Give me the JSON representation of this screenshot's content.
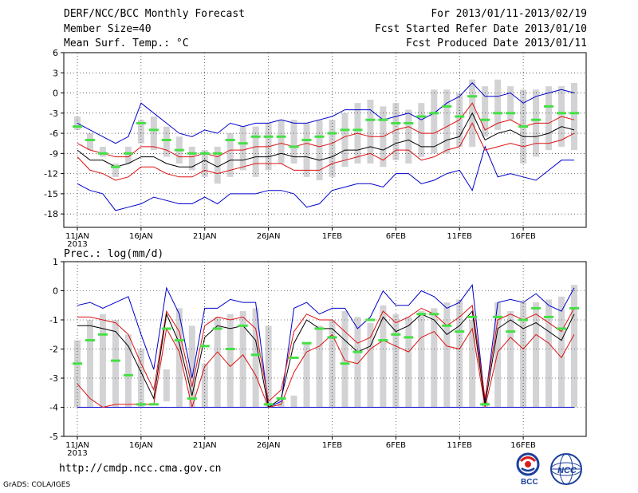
{
  "header": {
    "title": "DERF/NCC/BCC Monthly Forecast",
    "member_size": "Member Size=40",
    "variable": "Mean Surf. Temp.: °C",
    "period": "For 2013/01/11-2013/02/19",
    "start_date": "Fcst Started Refer Date 2013/01/10",
    "produced_date": "Fcst Produced Date 2013/01/11"
  },
  "footer": {
    "url": "http://cmdp.ncc.cma.gov.cn",
    "credit": "GrADS: COLA/IGES",
    "logo_bcc": "BCC",
    "logo_ncc": "NCC"
  },
  "colors": {
    "box": "#d3d3d6",
    "median": "#44e044",
    "mean": "#000000",
    "inner": "#dd1111",
    "outer": "#0000cc",
    "grid": "#000000"
  },
  "chart_data": [
    {
      "type": "line",
      "title": "Mean Surf. Temp.: °C",
      "ylim": [
        -20,
        6
      ],
      "yticks": [
        6,
        3,
        0,
        -3,
        -6,
        -9,
        -12,
        -15,
        -18
      ],
      "xtick_days": [
        1,
        6,
        11,
        16,
        21,
        26,
        31,
        36
      ],
      "xtick_labels": [
        "11JAN\n2013",
        "16JAN",
        "21JAN",
        "26JAN",
        "1FEB",
        "6FEB",
        "11FEB",
        "16FEB"
      ],
      "x_start": "2013-01-11",
      "n_days": 40,
      "box_low": [
        -5.5,
        -8.5,
        -9.5,
        -12.5,
        -10.5,
        -7.5,
        -8.5,
        -9.5,
        -10.5,
        -11.5,
        -12.5,
        -13.5,
        -12.5,
        -11.5,
        -12.5,
        -11.5,
        -10.5,
        -10.5,
        -12.5,
        -13.0,
        -12.5,
        -11.0,
        -10.5,
        -10.5,
        -11.0,
        -10.0,
        -10.5,
        -9.5,
        -9.0,
        -9.0,
        -8.0,
        -8.0,
        -6.5,
        -5.5,
        -4.0,
        -10.5,
        -9.5,
        -8.5,
        -8.0,
        -8.5
      ],
      "box_high": [
        -3.5,
        -6.0,
        -8.0,
        -10.5,
        -8.0,
        -4.0,
        -3.5,
        -5.0,
        -6.5,
        -8.0,
        -8.5,
        -8.0,
        -6.0,
        -5.0,
        -5.0,
        -4.5,
        -4.0,
        -4.0,
        -4.5,
        -4.0,
        -4.0,
        -3.0,
        -1.5,
        -1.0,
        -2.0,
        -1.5,
        -2.5,
        -1.5,
        0.5,
        0.5,
        0.0,
        2.0,
        1.0,
        2.0,
        1.0,
        0.5,
        0.5,
        1.0,
        1.0,
        1.5
      ],
      "median": [
        -5.0,
        -7.0,
        -9.0,
        -11.0,
        -9.0,
        -4.5,
        -5.5,
        -7.0,
        -8.5,
        -9.0,
        -9.0,
        -9.0,
        -7.0,
        -7.5,
        -6.5,
        -6.5,
        -6.5,
        -8.0,
        -7.0,
        -6.5,
        -6.0,
        -5.5,
        -5.5,
        -4.0,
        -4.0,
        -4.5,
        -4.5,
        -3.5,
        -3.0,
        -2.0,
        -3.5,
        -0.5,
        -4.0,
        -3.0,
        -3.0,
        -5.0,
        -4.0,
        -2.0,
        -3.0,
        -3.0
      ],
      "mean": [
        -8.5,
        -10.0,
        -10.0,
        -11.0,
        -10.5,
        -9.5,
        -9.5,
        -10.5,
        -11.0,
        -11.0,
        -10.0,
        -11.0,
        -10.0,
        -10.0,
        -9.5,
        -9.5,
        -9.0,
        -9.5,
        -9.5,
        -10.0,
        -9.5,
        -8.5,
        -8.5,
        -8.0,
        -8.5,
        -7.5,
        -7.0,
        -8.0,
        -8.0,
        -7.0,
        -6.5,
        -3.0,
        -7.0,
        -6.0,
        -5.5,
        -6.5,
        -6.5,
        -6.0,
        -5.0,
        -5.5
      ],
      "inner_high": [
        -7.5,
        -8.5,
        -9.0,
        -9.5,
        -9.5,
        -8.0,
        -8.0,
        -8.5,
        -9.5,
        -9.5,
        -9.0,
        -9.5,
        -8.5,
        -8.5,
        -8.0,
        -8.0,
        -7.5,
        -8.0,
        -7.5,
        -8.0,
        -7.5,
        -6.5,
        -6.0,
        -6.5,
        -6.5,
        -5.5,
        -5.0,
        -6.0,
        -6.0,
        -5.0,
        -4.0,
        -1.5,
        -5.5,
        -4.5,
        -4.0,
        -5.0,
        -4.5,
        -4.5,
        -3.5,
        -4.0
      ],
      "inner_low": [
        -9.5,
        -11.5,
        -12.0,
        -13.0,
        -12.5,
        -11.0,
        -11.0,
        -12.0,
        -12.5,
        -12.5,
        -11.5,
        -12.0,
        -11.5,
        -11.0,
        -10.5,
        -10.5,
        -10.5,
        -11.5,
        -11.5,
        -11.5,
        -10.5,
        -10.0,
        -9.5,
        -9.0,
        -10.0,
        -8.5,
        -8.5,
        -10.0,
        -9.5,
        -8.5,
        -8.0,
        -4.5,
        -8.5,
        -8.0,
        -7.5,
        -8.0,
        -7.5,
        -7.5,
        -7.0,
        -6.0
      ],
      "outer_high": [
        -4.5,
        -5.5,
        -6.5,
        -7.5,
        -6.5,
        -1.5,
        -3.0,
        -4.5,
        -6.0,
        -6.5,
        -5.5,
        -6.0,
        -4.5,
        -5.0,
        -4.5,
        -4.5,
        -4.0,
        -4.5,
        -4.5,
        -4.0,
        -3.5,
        -2.5,
        -2.5,
        -2.5,
        -4.0,
        -3.5,
        -3.0,
        -4.0,
        -3.0,
        -1.5,
        -0.5,
        1.5,
        -0.5,
        -0.5,
        0.0,
        -1.5,
        -0.5,
        0.0,
        0.5,
        0.0
      ],
      "outer_low": [
        -13.5,
        -14.5,
        -15.0,
        -17.5,
        -17.0,
        -16.5,
        -15.5,
        -16.0,
        -16.5,
        -16.5,
        -15.5,
        -16.5,
        -15.0,
        -15.0,
        -15.0,
        -14.5,
        -14.5,
        -15.0,
        -17.0,
        -16.5,
        -14.5,
        -14.0,
        -13.5,
        -13.5,
        -14.0,
        -12.0,
        -12.0,
        -13.5,
        -13.0,
        -12.0,
        -11.5,
        -14.5,
        -8.0,
        -12.5,
        -12.0,
        -12.5,
        -13.0,
        -11.5,
        -10.0,
        -10.0
      ]
    },
    {
      "type": "line",
      "title": "Prec.: log(mm/d)",
      "ylim": [
        -5,
        1
      ],
      "yticks": [
        1,
        0,
        -1,
        -2,
        -3,
        -4,
        -5
      ],
      "xtick_days": [
        1,
        6,
        11,
        16,
        21,
        26,
        31,
        36
      ],
      "xtick_labels": [
        "11JAN\n2013",
        "16JAN",
        "21JAN",
        "26JAN",
        "1FEB",
        "6FEB",
        "11FEB",
        "16FEB"
      ],
      "x_start": "2013-01-11",
      "n_days": 40,
      "box_low": [
        -4.0,
        -4.0,
        -4.0,
        -4.0,
        -4.0,
        -4.0,
        -3.3,
        -3.8,
        -4.0,
        -4.0,
        -4.0,
        -4.0,
        -4.0,
        -4.0,
        -4.0,
        -4.0,
        -4.0,
        -4.0,
        -4.0,
        -4.0,
        -4.0,
        -4.0,
        -4.0,
        -4.0,
        -4.0,
        -4.0,
        -4.0,
        -4.0,
        -4.0,
        -4.0,
        -4.0,
        -4.0,
        -4.0,
        -4.0,
        -4.0,
        -4.0,
        -4.0,
        -4.0,
        -4.0,
        -4.0
      ],
      "box_high": [
        -1.7,
        -1.0,
        -0.8,
        -1.0,
        -1.5,
        -2.0,
        -3.3,
        -2.7,
        -0.6,
        -1.2,
        -2.5,
        -0.9,
        -0.8,
        -0.7,
        -0.6,
        -1.2,
        -3.8,
        -3.6,
        -1.8,
        -1.2,
        -1.0,
        -0.7,
        -0.9,
        -1.1,
        -0.5,
        -0.8,
        -0.9,
        -0.7,
        -0.6,
        -0.4,
        -0.3,
        -1.0,
        -3.8,
        -0.4,
        -0.7,
        -0.4,
        -0.4,
        -0.3,
        -0.2,
        0.2
      ],
      "median": [
        -2.5,
        -1.7,
        -1.5,
        -2.4,
        -2.9,
        -3.9,
        -3.9,
        -1.3,
        -1.7,
        -3.7,
        -1.9,
        -1.3,
        -2.0,
        -1.2,
        -2.2,
        -3.9,
        -3.7,
        -2.3,
        -1.8,
        -1.3,
        -1.6,
        -2.5,
        -2.1,
        -1.0,
        -1.7,
        -1.5,
        -1.6,
        -0.8,
        -0.8,
        -1.2,
        -1.4,
        -0.9,
        -3.9,
        -0.9,
        -1.4,
        -1.0,
        -0.6,
        -0.9,
        -1.3,
        -0.6
      ],
      "mean": [
        -1.2,
        -1.2,
        -1.3,
        -1.4,
        -1.9,
        -2.8,
        -3.7,
        -0.8,
        -1.8,
        -3.6,
        -1.6,
        -1.2,
        -1.3,
        -1.2,
        -1.7,
        -4.0,
        -3.7,
        -1.8,
        -1.0,
        -1.3,
        -1.3,
        -1.7,
        -2.1,
        -1.9,
        -0.9,
        -1.4,
        -1.2,
        -0.8,
        -1.0,
        -1.5,
        -1.2,
        -0.7,
        -3.9,
        -1.3,
        -1.0,
        -1.3,
        -1.1,
        -1.4,
        -1.7,
        -0.8
      ],
      "inner_high": [
        -0.9,
        -0.9,
        -1.0,
        -1.1,
        -1.5,
        -2.5,
        -3.4,
        -0.7,
        -1.4,
        -3.3,
        -1.2,
        -0.9,
        -1.0,
        -0.9,
        -1.3,
        -3.8,
        -3.4,
        -1.4,
        -0.8,
        -1.0,
        -1.0,
        -1.4,
        -1.8,
        -1.6,
        -0.7,
        -1.1,
        -0.9,
        -0.6,
        -0.8,
        -1.2,
        -0.9,
        -0.5,
        -3.7,
        -1.0,
        -0.8,
        -1.0,
        -0.8,
        -1.1,
        -1.4,
        -0.6
      ],
      "inner_low": [
        -3.2,
        -3.7,
        -4.0,
        -3.9,
        -3.9,
        -3.9,
        -3.9,
        -1.3,
        -2.1,
        -4.0,
        -2.6,
        -2.1,
        -2.6,
        -2.2,
        -2.9,
        -4.0,
        -3.9,
        -2.8,
        -2.1,
        -1.9,
        -1.5,
        -2.4,
        -2.5,
        -2.0,
        -1.7,
        -1.9,
        -2.1,
        -1.6,
        -1.4,
        -1.9,
        -2.0,
        -1.3,
        -4.0,
        -2.1,
        -1.6,
        -2.0,
        -1.5,
        -1.8,
        -2.3,
        -1.5
      ],
      "outer_high": [
        -0.5,
        -0.4,
        -0.6,
        -0.4,
        -0.2,
        -1.5,
        -2.7,
        0.1,
        -0.8,
        -3.0,
        -0.6,
        -0.6,
        -0.3,
        -0.4,
        -0.4,
        -4.0,
        -3.8,
        -0.6,
        -0.4,
        -0.8,
        -0.6,
        -0.6,
        -1.3,
        -0.9,
        0.0,
        -0.5,
        -0.5,
        0.0,
        -0.2,
        -0.6,
        -0.4,
        0.2,
        -3.8,
        -0.4,
        -0.3,
        -0.4,
        -0.1,
        -0.5,
        -0.7,
        0.1
      ],
      "outer_low": [
        -4.0,
        -4.0,
        -4.0,
        -4.0,
        -4.0,
        -4.0,
        -4.0,
        -4.0,
        -4.0,
        -4.0,
        -4.0,
        -4.0,
        -4.0,
        -4.0,
        -4.0,
        -4.0,
        -4.0,
        -4.0,
        -4.0,
        -4.0,
        -4.0,
        -4.0,
        -4.0,
        -4.0,
        -4.0,
        -4.0,
        -4.0,
        -4.0,
        -4.0,
        -4.0,
        -4.0,
        -4.0,
        -4.0,
        -4.0,
        -4.0,
        -4.0,
        -4.0,
        -4.0,
        -4.0,
        -4.0
      ]
    }
  ]
}
